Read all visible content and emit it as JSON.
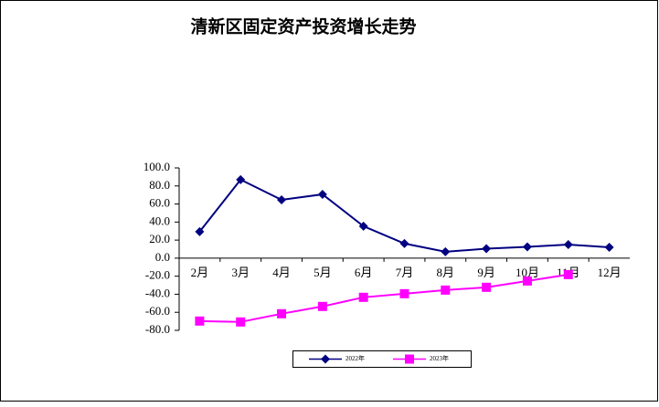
{
  "chart_data": {
    "type": "line",
    "title": "清新区固定资产投资增长走势",
    "categories": [
      "2月",
      "3月",
      "4月",
      "5月",
      "6月",
      "7月",
      "8月",
      "9月",
      "10月",
      "11月",
      "12月"
    ],
    "series": [
      {
        "name": "2022年",
        "color": "#000080",
        "marker": "diamond",
        "values": [
          29.3,
          87,
          64.6,
          70.7,
          35.4,
          16.2,
          7.1,
          10.5,
          12.5,
          15,
          12
        ]
      },
      {
        "name": "2023年",
        "color": "#ff00ff",
        "marker": "square",
        "values": [
          -69.7,
          -70.7,
          -61.6,
          -53.5,
          -43.4,
          -39.4,
          -35.4,
          -32.3,
          -25.3,
          -18.2,
          null
        ]
      }
    ],
    "ylim": [
      -80,
      100
    ],
    "yticks": [
      {
        "value": -80,
        "label": "-80.0"
      },
      {
        "value": -60,
        "label": "-60.0"
      },
      {
        "value": -40,
        "label": "-40.0"
      },
      {
        "value": -20,
        "label": "-20.0"
      },
      {
        "value": 0,
        "label": "0.0"
      },
      {
        "value": 20,
        "label": "20.0"
      },
      {
        "value": 40,
        "label": "40.0"
      },
      {
        "value": 60,
        "label": "60.0"
      },
      {
        "value": 80,
        "label": "80.0"
      },
      {
        "value": 100,
        "label": "100.0"
      }
    ],
    "legend": "bottom"
  }
}
